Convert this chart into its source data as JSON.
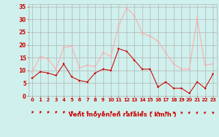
{
  "x": [
    0,
    1,
    2,
    3,
    4,
    5,
    6,
    7,
    8,
    9,
    10,
    11,
    12,
    13,
    14,
    15,
    16,
    17,
    18,
    19,
    20,
    21,
    22,
    23
  ],
  "vent_moyen": [
    7,
    9.5,
    9,
    8,
    12.5,
    7.5,
    6,
    5.5,
    9,
    10.5,
    10,
    18.5,
    17.5,
    14,
    10.5,
    10.5,
    3.5,
    5.5,
    3,
    3,
    1,
    5.5,
    3,
    8.5
  ],
  "rafales": [
    9.5,
    15.5,
    14.5,
    10.5,
    19,
    19.5,
    11,
    12,
    11.5,
    17,
    15.5,
    27.5,
    34.5,
    31.5,
    24.5,
    23.5,
    21.5,
    17,
    12.5,
    10.5,
    10.5,
    30.5,
    12,
    12.5
  ],
  "color_moyen": "#cc0000",
  "color_rafales": "#ffaaaa",
  "bg_color": "#cff0ec",
  "grid_color": "#b0b0b0",
  "xlabel": "Vent moyen/en rafales ( km/h )",
  "xlabel_color": "#cc0000",
  "yticks": [
    0,
    5,
    10,
    15,
    20,
    25,
    30,
    35
  ],
  "ylim": [
    0,
    36
  ],
  "xlim": [
    -0.5,
    23.5
  ],
  "tick_color": "#cc0000",
  "wind_arrows": [
    225,
    225,
    225,
    225,
    225,
    225,
    225,
    225,
    225,
    225,
    225,
    225,
    225,
    225,
    225,
    270,
    315,
    315,
    315,
    315,
    45,
    45,
    45,
    315
  ]
}
